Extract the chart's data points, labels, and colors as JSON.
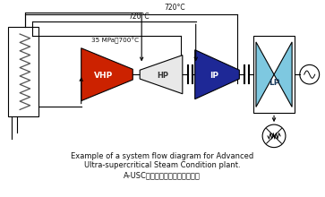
{
  "bg_color": "#ffffff",
  "black": "#000000",
  "gray": "#888888",
  "vhp_color": "#cc2200",
  "hp_color": "#e8e8e8",
  "ip_color": "#1e2896",
  "lp_color": "#7ec8e0",
  "lp_dark": "#4a9ab8",
  "title_line1": "Example of a system flow diagram for Advanced",
  "title_line2": "Ultra-supercritical Steam Condition plant.",
  "title_line3": "A-USCプラントのシステム概要図",
  "temp_top": "720°C",
  "temp_mid": "720°C",
  "temp_bot": "35 MPa、700°C"
}
